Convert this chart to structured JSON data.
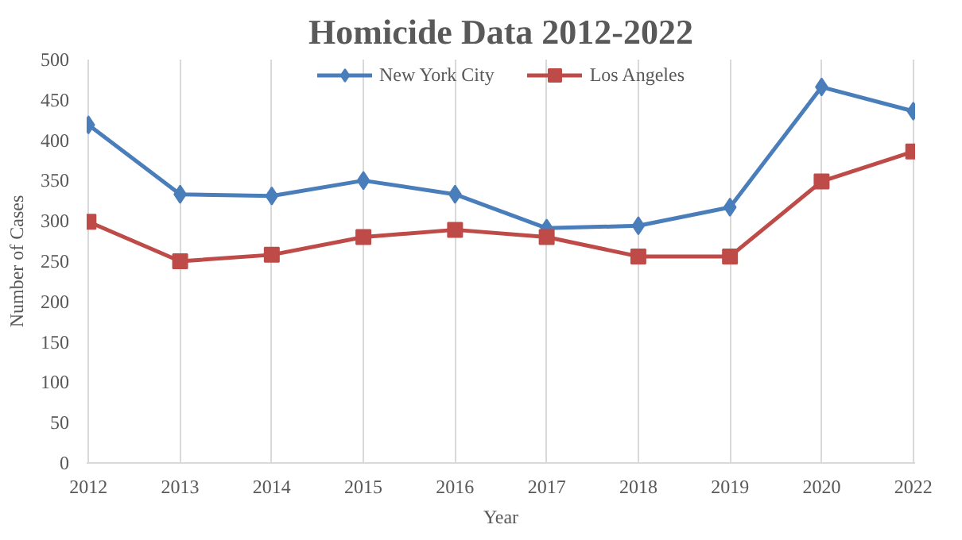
{
  "chart_data": {
    "type": "line",
    "title": "Homicide Data 2012-2022",
    "xlabel": "Year",
    "ylabel": "Number of Cases",
    "categories": [
      "2012",
      "2013",
      "2014",
      "2015",
      "2016",
      "2017",
      "2018",
      "2019",
      "2020",
      "2022"
    ],
    "series": [
      {
        "name": "New York City",
        "color": "#4a7ebb",
        "marker": "diamond",
        "values": [
          419,
          333,
          331,
          350,
          333,
          291,
          294,
          317,
          466,
          436
        ]
      },
      {
        "name": "Los Angeles",
        "color": "#be4b48",
        "marker": "square",
        "values": [
          299,
          250,
          258,
          280,
          289,
          280,
          256,
          256,
          349,
          386
        ]
      }
    ],
    "ylim": [
      0,
      500
    ],
    "yticks": [
      0,
      50,
      100,
      150,
      200,
      250,
      300,
      350,
      400,
      450,
      500
    ],
    "grid": "x",
    "legend": "top",
    "line_style": "solid"
  }
}
